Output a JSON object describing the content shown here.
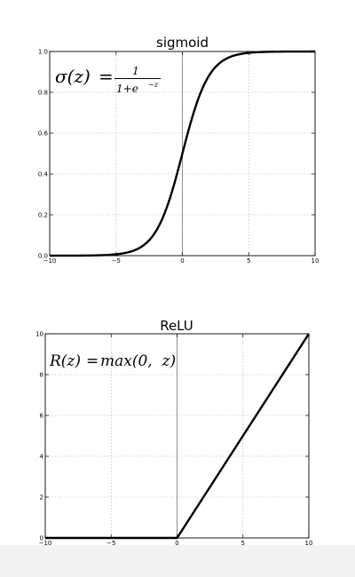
{
  "chart_data": [
    {
      "type": "line",
      "title": "sigmoid",
      "xlabel": "",
      "ylabel": "",
      "xlim": [
        -10,
        10
      ],
      "ylim": [
        0.0,
        1.0
      ],
      "grid": true,
      "xticks": [
        -10,
        -5,
        0,
        5,
        10
      ],
      "xtick_labels": [
        "−10",
        "−5",
        "0",
        "5",
        "10"
      ],
      "yticks": [
        0.0,
        0.2,
        0.4,
        0.6,
        0.8,
        1.0
      ],
      "ytick_labels": [
        "0.0",
        "0.2",
        "0.4",
        "0.6",
        "0.8",
        "1.0"
      ],
      "annotation": "σ(z) = 1 / (1 + e^−z)",
      "annotation_parts": {
        "lhs": "σ(z)",
        "eq": "=",
        "numerator": "1",
        "denominator": "1+e",
        "exponent": "−z"
      },
      "series": [
        {
          "function": "sigmoid",
          "x": [
            -10,
            -8,
            -6,
            -5,
            -4,
            -3,
            -2,
            -1,
            0,
            1,
            2,
            3,
            4,
            5,
            6,
            8,
            10
          ],
          "y": [
            5e-05,
            0.0003,
            0.0025,
            0.0067,
            0.018,
            0.047,
            0.119,
            0.269,
            0.5,
            0.731,
            0.881,
            0.953,
            0.982,
            0.9933,
            0.9975,
            0.9997,
            0.99995
          ]
        }
      ],
      "colors": {
        "line": "#000000",
        "grid": "#b0b0b0",
        "vline": "#777777"
      }
    },
    {
      "type": "line",
      "title": "ReLU",
      "xlabel": "",
      "ylabel": "",
      "xlim": [
        -10,
        10
      ],
      "ylim": [
        0,
        10
      ],
      "grid": true,
      "xticks": [
        -10,
        -5,
        0,
        5,
        10
      ],
      "xtick_labels": [
        "−10",
        "−5",
        "0",
        "5",
        "10"
      ],
      "yticks": [
        0,
        2,
        4,
        6,
        8,
        10
      ],
      "ytick_labels": [
        "0",
        "2",
        "4",
        "6",
        "8",
        "10"
      ],
      "annotation": "R(z) = max(0, z)",
      "annotation_parts": {
        "lhs": "R(z)",
        "eq": "=",
        "rhs": "max(0,  z)"
      },
      "series": [
        {
          "function": "relu",
          "x": [
            -10,
            -5,
            0,
            5,
            10
          ],
          "y": [
            0,
            0,
            0,
            5,
            10
          ]
        }
      ],
      "colors": {
        "line": "#000000",
        "grid": "#b0b0b0",
        "vline": "#777777"
      }
    }
  ]
}
